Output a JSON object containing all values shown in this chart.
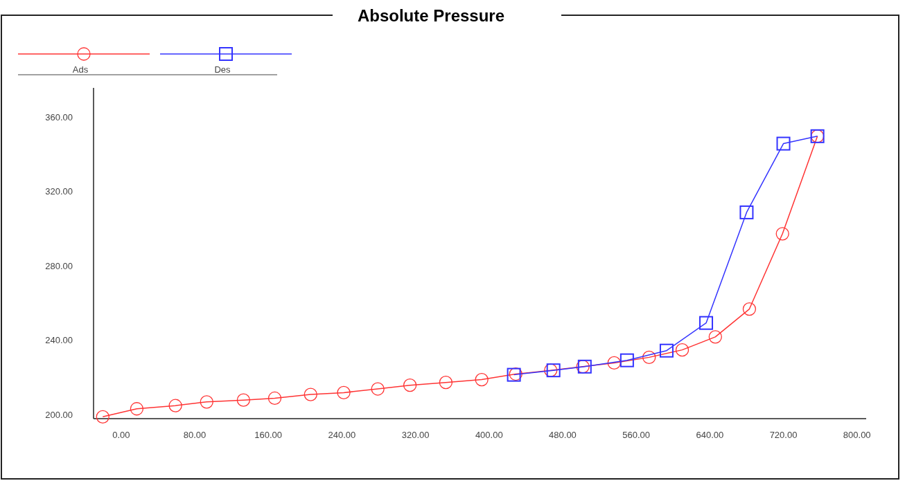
{
  "chart_data": {
    "type": "line",
    "title": "Absolute Pressure",
    "xlim": [
      -30,
      810
    ],
    "xticks": [
      {
        "value": 0,
        "label": "0.00"
      },
      {
        "value": 80,
        "label": "80.00"
      },
      {
        "value": 160,
        "label": "160.00"
      },
      {
        "value": 240,
        "label": "240.00"
      },
      {
        "value": 320,
        "label": "320.00"
      },
      {
        "value": 400,
        "label": "400.00"
      },
      {
        "value": 480,
        "label": "480.00"
      },
      {
        "value": 560,
        "label": "560.00"
      },
      {
        "value": 640,
        "label": "640.00"
      },
      {
        "value": 720,
        "label": "720.00"
      },
      {
        "value": 800,
        "label": "800.00"
      }
    ],
    "ylim": [
      198,
      376
    ],
    "yticks": [
      {
        "value": 200,
        "label": "200.00"
      },
      {
        "value": 240,
        "label": "240.00"
      },
      {
        "value": 280,
        "label": "280.00"
      },
      {
        "value": 320,
        "label": "320.00"
      },
      {
        "value": 360,
        "label": "360.00"
      }
    ],
    "legend": "top left",
    "grid": false,
    "series": [
      {
        "name": "Ads",
        "color": "#ff3333",
        "marker": "circle",
        "x": [
          -20,
          17,
          59,
          93,
          133,
          167,
          206,
          242,
          279,
          314,
          353,
          392,
          429,
          467,
          502,
          536,
          574,
          610,
          646,
          683,
          719,
          757
        ],
        "values": [
          199,
          203.3,
          205,
          207,
          208,
          209,
          211,
          212,
          214,
          216,
          217.5,
          219,
          222,
          224,
          226,
          228,
          231,
          235,
          242,
          257,
          297.5,
          350
        ]
      },
      {
        "name": "Des",
        "color": "#3333ff",
        "marker": "square",
        "x": [
          427,
          470,
          504,
          550,
          593,
          636,
          680,
          720,
          757
        ],
        "values": [
          221.6,
          224,
          226,
          229.4,
          234.6,
          249.5,
          309,
          346,
          350
        ]
      }
    ]
  }
}
